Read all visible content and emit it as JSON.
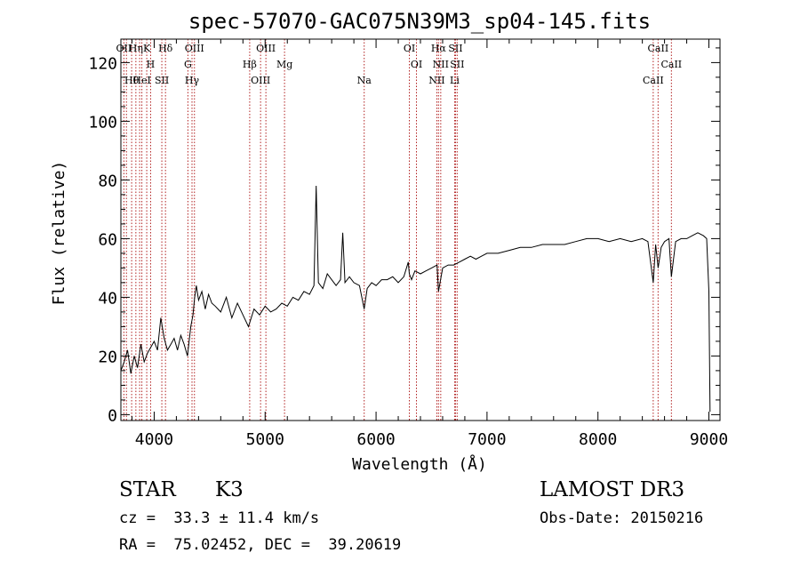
{
  "chart_data": {
    "type": "line",
    "title": "spec-57070-GAC075N39M3_sp04-145.fits",
    "xlabel": "Wavelength (Å)",
    "ylabel": "Flux (relative)",
    "xlim": [
      3700,
      9100
    ],
    "ylim": [
      -2,
      128
    ],
    "x_ticks": [
      4000,
      5000,
      6000,
      7000,
      8000,
      9000
    ],
    "y_ticks": [
      0,
      20,
      40,
      60,
      80,
      100,
      120
    ],
    "x_tick_labels": [
      "4000",
      "5000",
      "6000",
      "7000",
      "8000",
      "9000"
    ],
    "y_tick_labels": [
      "0",
      "20",
      "40",
      "60",
      "80",
      "100",
      "120"
    ],
    "grid": false,
    "series": [
      {
        "x": [
          3700,
          3730,
          3760,
          3790,
          3820,
          3850,
          3880,
          3910,
          3940,
          3970,
          4000,
          4030,
          4060,
          4090,
          4120,
          4150,
          4180,
          4210,
          4240,
          4270,
          4300,
          4330,
          4350,
          4365,
          4380,
          4400,
          4430,
          4460,
          4490,
          4520,
          4550,
          4600,
          4650,
          4700,
          4750,
          4800,
          4850,
          4900,
          4950,
          5000,
          5050,
          5100,
          5150,
          5200,
          5250,
          5300,
          5350,
          5400,
          5440,
          5460,
          5480,
          5520,
          5560,
          5600,
          5640,
          5680,
          5700,
          5720,
          5760,
          5800,
          5850,
          5893,
          5920,
          5960,
          6000,
          6050,
          6100,
          6150,
          6200,
          6250,
          6290,
          6300,
          6320,
          6350,
          6400,
          6450,
          6500,
          6550,
          6563,
          6600,
          6650,
          6700,
          6750,
          6800,
          6850,
          6900,
          6950,
          7000,
          7100,
          7200,
          7300,
          7400,
          7500,
          7600,
          7700,
          7800,
          7900,
          8000,
          8100,
          8200,
          8300,
          8400,
          8450,
          8498,
          8520,
          8542,
          8570,
          8600,
          8640,
          8662,
          8700,
          8750,
          8800,
          8850,
          8900,
          8950,
          8980,
          9000,
          9010
        ],
        "y": [
          15,
          18,
          22,
          14,
          20,
          16,
          24,
          18,
          21,
          23,
          25,
          22,
          33,
          26,
          22,
          24,
          26,
          22,
          27,
          24,
          20,
          30,
          34,
          40,
          44,
          39,
          42,
          36,
          41,
          38,
          37,
          35,
          40,
          33,
          38,
          34,
          30,
          36,
          34,
          37,
          35,
          36,
          38,
          37,
          40,
          39,
          42,
          41,
          44,
          78,
          45,
          43,
          48,
          46,
          44,
          46,
          62,
          45,
          47,
          45,
          44,
          36,
          43,
          45,
          44,
          46,
          46,
          47,
          45,
          47,
          52,
          48,
          46,
          49,
          48,
          49,
          50,
          51,
          42,
          50,
          51,
          51,
          52,
          53,
          54,
          53,
          54,
          55,
          55,
          56,
          57,
          57,
          58,
          58,
          58,
          59,
          60,
          60,
          59,
          60,
          59,
          60,
          59,
          45,
          58,
          50,
          57,
          59,
          60,
          47,
          59,
          60,
          60,
          61,
          62,
          61,
          60,
          42,
          1
        ],
        "color": "#000000"
      }
    ],
    "lines": [
      {
        "x": 3727,
        "label": "OII"
      },
      {
        "x": 3750,
        "label": ""
      },
      {
        "x": 3797,
        "label": "Hθ"
      },
      {
        "x": 3835,
        "label": "Hη"
      },
      {
        "x": 3869,
        "label": ""
      },
      {
        "x": 3889,
        "label": "HeI"
      },
      {
        "x": 3933,
        "label": "K"
      },
      {
        "x": 3968,
        "label": "H"
      },
      {
        "x": 4069,
        "label": "SII"
      },
      {
        "x": 4102,
        "label": "Hδ"
      },
      {
        "x": 4304,
        "label": "G"
      },
      {
        "x": 4341,
        "label": "Hγ"
      },
      {
        "x": 4363,
        "label": "OIII"
      },
      {
        "x": 4861,
        "label": "Hβ"
      },
      {
        "x": 4959,
        "label": "OIII"
      },
      {
        "x": 5007,
        "label": "OIII"
      },
      {
        "x": 5175,
        "label": "Mg"
      },
      {
        "x": 5893,
        "label": "Na"
      },
      {
        "x": 6300,
        "label": "OI"
      },
      {
        "x": 6364,
        "label": "OI"
      },
      {
        "x": 6548,
        "label": "NII"
      },
      {
        "x": 6563,
        "label": "Hα"
      },
      {
        "x": 6583,
        "label": "NII"
      },
      {
        "x": 6708,
        "label": "Li"
      },
      {
        "x": 6716,
        "label": "SII"
      },
      {
        "x": 6731,
        "label": "SII"
      },
      {
        "x": 8498,
        "label": "CaII"
      },
      {
        "x": 8542,
        "label": "CaII"
      },
      {
        "x": 8662,
        "label": "CaII"
      }
    ],
    "line_color": "#b22222"
  },
  "info": {
    "object_class": "STAR",
    "subclass": "K3",
    "survey": "LAMOST DR3",
    "velocity": "cz =  33.3 ± 11.4 km/s",
    "obs_date": "Obs-Date: 20150216",
    "coords": "RA =  75.02452, DEC =  39.20619"
  }
}
